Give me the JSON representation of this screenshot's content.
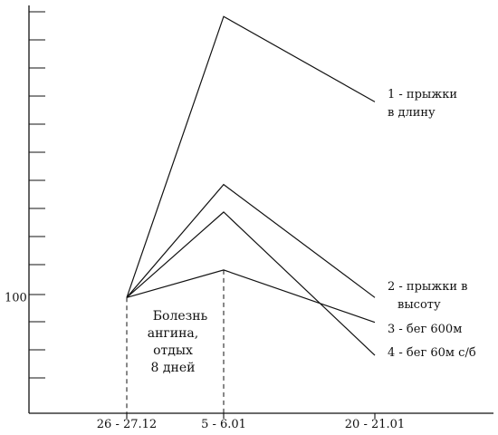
{
  "chart_data": {
    "type": "line",
    "categories": [
      "26 - 27.12",
      "5 - 6.01",
      "20 - 21.01"
    ],
    "series": [
      {
        "name": "1 - прыжки\nв длину",
        "values": [
          100,
          202,
          171
        ]
      },
      {
        "name": "2 - прыжки в\nвысоту",
        "values": [
          100,
          141,
          100
        ]
      },
      {
        "name": "3 - бег 600м",
        "values": [
          100,
          110,
          91
        ]
      },
      {
        "name": "4 - бег 60м с/б",
        "values": [
          100,
          131,
          79
        ]
      }
    ],
    "ytick_label": "100",
    "ylim": [
      58,
      206
    ],
    "annotation": "Болезнь\nангина,\nотдых\n8 дней",
    "grid": false,
    "line_color": "#111111"
  }
}
